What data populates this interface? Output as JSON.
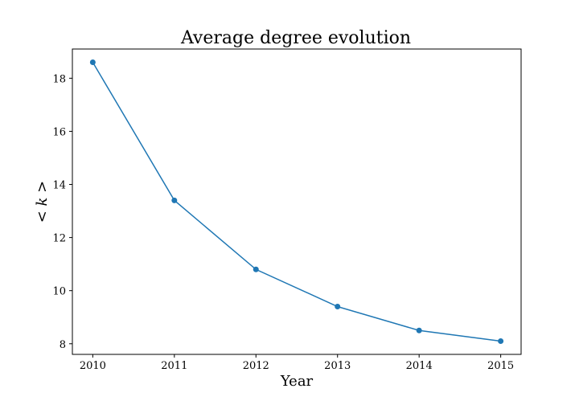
{
  "chart_data": {
    "type": "line",
    "title": "Average degree evolution",
    "xlabel": "Year",
    "ylabel": "< k >",
    "x": [
      2010,
      2011,
      2012,
      2013,
      2014,
      2015
    ],
    "series": [
      {
        "values": [
          18.6,
          13.4,
          10.8,
          9.4,
          8.5,
          8.1
        ],
        "color": "#1f77b4"
      }
    ],
    "xlim": [
      2009.75,
      2015.25
    ],
    "ylim": [
      7.6,
      19.1
    ],
    "xticks": [
      2010,
      2011,
      2012,
      2013,
      2014,
      2015
    ],
    "yticks": [
      8,
      10,
      12,
      14,
      16,
      18
    ],
    "grid": false,
    "markers": true
  }
}
